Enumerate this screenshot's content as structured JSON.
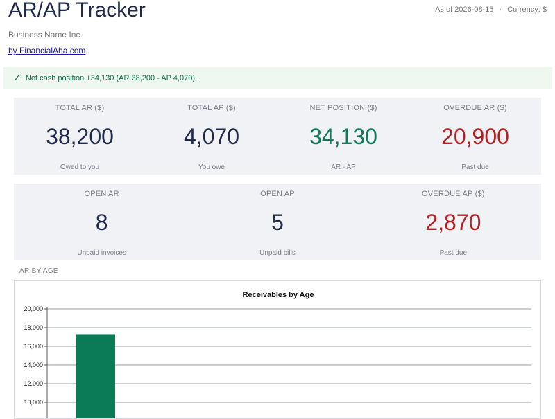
{
  "header": {
    "title": "AR/AP Tracker",
    "as_of": "As of 2026-08-15",
    "separator": "·",
    "currency": "Currency: $",
    "business_name": "Business Name Inc.",
    "byline": "by FinancialAha.com"
  },
  "banner": {
    "icon": "check-icon",
    "text": "Net cash position +34,130 (AR 38,200 - AP 4,070)."
  },
  "kpis_row1": [
    {
      "label": "TOTAL AR ($)",
      "value": "38,200",
      "sub": "Owed to you"
    },
    {
      "label": "TOTAL AP ($)",
      "value": "4,070",
      "sub": "You owe"
    },
    {
      "label": "NET POSITION ($)",
      "value": "34,130",
      "sub": "AR - AP"
    },
    {
      "label": "OVERDUE AR ($)",
      "value": "20,900",
      "sub": "Past due"
    }
  ],
  "kpis_row2": [
    {
      "label": "OPEN AR",
      "value": "8",
      "sub": "Unpaid invoices"
    },
    {
      "label": "OPEN AP",
      "value": "5",
      "sub": "Unpaid bills"
    },
    {
      "label": "OVERDUE AP ($)",
      "value": "2,870",
      "sub": "Past due"
    }
  ],
  "colors": {
    "positive": "#0f7a57",
    "negative": "#b51f1f",
    "bar": "#0a7a57"
  },
  "section_label": "AR BY AGE",
  "chart_data": {
    "type": "bar",
    "title": "Receivables by Age",
    "xlabel": "",
    "ylabel": "",
    "categories": [
      ""
    ],
    "values": [
      17300
    ],
    "ylim_visible": [
      10000,
      20000
    ],
    "yticks": [
      "20,000",
      "18,000",
      "16,000",
      "14,000",
      "12,000",
      "10,000"
    ],
    "grid": true
  }
}
